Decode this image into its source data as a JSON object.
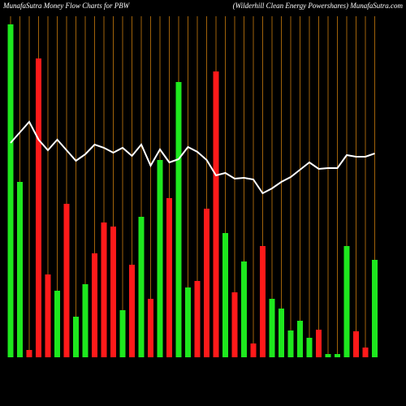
{
  "chart_data": {
    "type": "bar",
    "title": "MunafaSutra  Money Flow  Charts for PBW",
    "subtitle": "(Wilderhill Clean  Energy Powershares) MunafaSutra.com",
    "values": [
      410,
      216,
      9,
      368,
      102,
      82,
      189,
      50,
      90,
      128,
      166,
      161,
      58,
      114,
      173,
      72,
      243,
      196,
      339,
      86,
      94,
      183,
      352,
      153,
      80,
      118,
      17,
      137,
      72,
      60,
      33,
      45,
      24,
      34,
      4,
      4,
      137,
      32,
      12,
      120
    ],
    "colors": [
      "#1ee81e",
      "#1ee81e",
      "#ff1a1a",
      "#ff1a1a",
      "#ff1a1a",
      "#1ee81e",
      "#ff1a1a",
      "#1ee81e",
      "#1ee81e",
      "#ff1a1a",
      "#ff1a1a",
      "#ff1a1a",
      "#1ee81e",
      "#ff1a1a",
      "#1ee81e",
      "#ff1a1a",
      "#1ee81e",
      "#ff1a1a",
      "#1ee81e",
      "#1ee81e",
      "#ff1a1a",
      "#ff1a1a",
      "#ff1a1a",
      "#1ee81e",
      "#ff1a1a",
      "#1ee81e",
      "#ff1a1a",
      "#ff1a1a",
      "#1ee81e",
      "#1ee81e",
      "#1ee81e",
      "#1ee81e",
      "#1ee81e",
      "#ff1a1a",
      "#1ee81e",
      "#1ee81e",
      "#1ee81e",
      "#ff1a1a",
      "#ff1a1a",
      "#1ee81e"
    ],
    "line_values": [
      264,
      277,
      290,
      268,
      255,
      268,
      255,
      242,
      250,
      262,
      258,
      252,
      258,
      248,
      262,
      236,
      256,
      240,
      244,
      259,
      253,
      243,
      224,
      227,
      220,
      221,
      219,
      202,
      208,
      216,
      222,
      231,
      240,
      232,
      233,
      233,
      249,
      247,
      247,
      251
    ],
    "line_color": "#ffffff",
    "grid_color": "#a0620a",
    "ylim": [
      0,
      440
    ]
  }
}
